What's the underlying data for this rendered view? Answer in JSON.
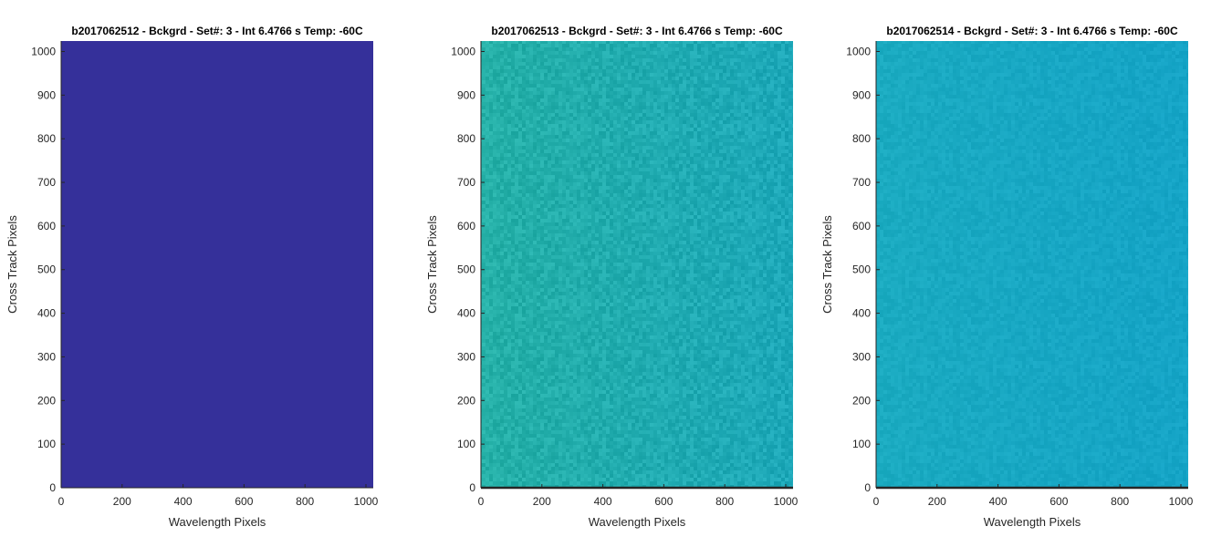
{
  "chart_data": [
    {
      "type": "heatmap",
      "title": "b2017062512 - Bckgrd - Set#: 3 - Int 6.4766 s Temp: -60C",
      "xlabel": "Wavelength Pixels",
      "ylabel": "Cross Track Pixels",
      "xlim": [
        0,
        1024
      ],
      "ylim": [
        0,
        1024
      ],
      "xticks": [
        0,
        200,
        400,
        600,
        800,
        1000
      ],
      "yticks": [
        0,
        100,
        200,
        300,
        400,
        500,
        600,
        700,
        800,
        900,
        1000
      ],
      "fill": "uniform",
      "colors": {
        "left": "#35309a",
        "right": "#35309a",
        "grain": 0.0
      },
      "bottom_dark_row": false
    },
    {
      "type": "heatmap",
      "title": "b2017062513 - Bckgrd - Set#: 3 - Int 6.4766 s Temp: -60C",
      "xlabel": "Wavelength Pixels",
      "ylabel": "Cross Track Pixels",
      "xlim": [
        0,
        1024
      ],
      "ylim": [
        0,
        1024
      ],
      "xticks": [
        0,
        200,
        400,
        600,
        800,
        1000
      ],
      "yticks": [
        0,
        100,
        200,
        300,
        400,
        500,
        600,
        700,
        800,
        900,
        1000
      ],
      "fill": "noise-gradient",
      "colors": {
        "left": "#2ab59c",
        "right": "#18a3c4",
        "grain": 0.35
      },
      "bottom_dark_row": true
    },
    {
      "type": "heatmap",
      "title": "b2017062514 - Bckgrd - Set#: 3 - Int 6.4766 s Temp: -60C",
      "xlabel": "Wavelength Pixels",
      "ylabel": "Cross Track Pixels",
      "xlim": [
        0,
        1024
      ],
      "ylim": [
        0,
        1024
      ],
      "xticks": [
        0,
        200,
        400,
        600,
        800,
        1000
      ],
      "yticks": [
        0,
        100,
        200,
        300,
        400,
        500,
        600,
        700,
        800,
        900,
        1000
      ],
      "fill": "noise-gradient",
      "colors": {
        "left": "#1eafbd",
        "right": "#12a0ca",
        "grain": 0.18
      },
      "bottom_dark_row": true
    }
  ]
}
